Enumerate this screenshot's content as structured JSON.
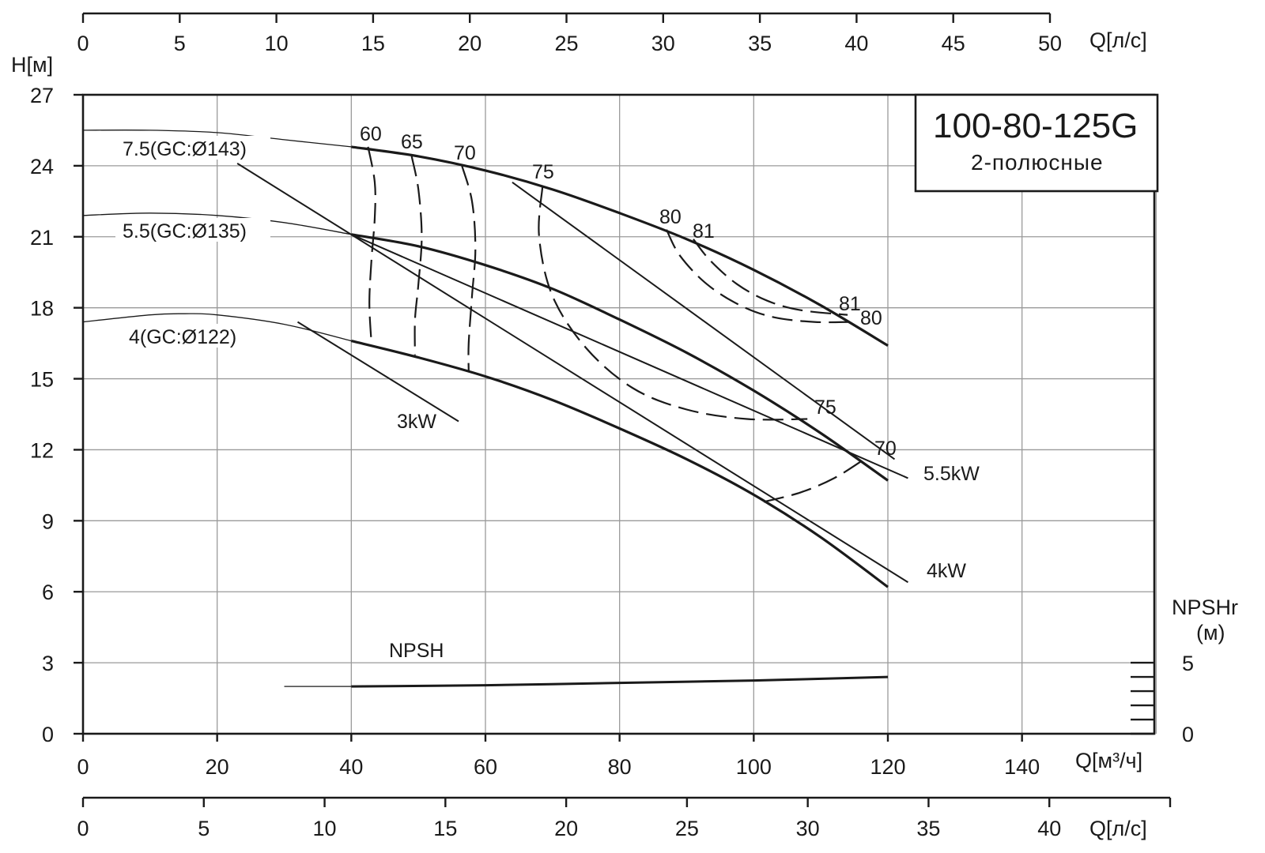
{
  "chart_data": {
    "type": "line",
    "title": "100-80-125G",
    "subtitle": "2-полюсные",
    "xlabel": "Q[м³/ч]",
    "ylabel": "H[м]",
    "xlim": [
      0,
      160
    ],
    "ylim": [
      0,
      27
    ],
    "x_ticks": [
      "0",
      "20",
      "40",
      "60",
      "80",
      "100",
      "120",
      "140"
    ],
    "y_ticks": [
      "0",
      "3",
      "6",
      "9",
      "12",
      "15",
      "18",
      "21",
      "24",
      "27"
    ],
    "top_axis": {
      "label": "Q[л/с]",
      "ticks": [
        "0",
        "5",
        "10",
        "15",
        "20",
        "25",
        "30",
        "35",
        "40",
        "45",
        "50"
      ],
      "max": 50
    },
    "bottom_axis": {
      "label": "Q[л/с]",
      "ticks": [
        "0",
        "5",
        "10",
        "15",
        "20",
        "25",
        "30",
        "35",
        "40"
      ],
      "max": 45
    },
    "npsh_axis": {
      "label_line1": "NPSHr",
      "label_line2": "(м)",
      "ticks": [
        "0",
        "5"
      ]
    },
    "grid": true,
    "series": [
      {
        "name": "7.5(GC:Ø143)",
        "operating_start": 40,
        "points": [
          [
            0,
            25.5
          ],
          [
            10,
            25.5
          ],
          [
            20,
            25.4
          ],
          [
            30,
            25.1
          ],
          [
            40,
            24.8
          ],
          [
            50,
            24.4
          ],
          [
            60,
            23.8
          ],
          [
            70,
            23.0
          ],
          [
            80,
            22.0
          ],
          [
            90,
            20.9
          ],
          [
            100,
            19.6
          ],
          [
            110,
            18.1
          ],
          [
            120,
            16.4
          ]
        ]
      },
      {
        "name": "5.5(GC:Ø135)",
        "operating_start": 40,
        "points": [
          [
            0,
            21.9
          ],
          [
            10,
            22.0
          ],
          [
            20,
            21.9
          ],
          [
            30,
            21.6
          ],
          [
            40,
            21.1
          ],
          [
            50,
            20.6
          ],
          [
            60,
            19.8
          ],
          [
            70,
            18.8
          ],
          [
            80,
            17.5
          ],
          [
            90,
            16.1
          ],
          [
            100,
            14.5
          ],
          [
            110,
            12.7
          ],
          [
            120,
            10.7
          ]
        ]
      },
      {
        "name": "4(GC:Ø122)",
        "operating_start": 40,
        "points": [
          [
            0,
            17.4
          ],
          [
            10,
            17.7
          ],
          [
            15,
            17.75
          ],
          [
            20,
            17.7
          ],
          [
            30,
            17.3
          ],
          [
            40,
            16.6
          ],
          [
            50,
            15.9
          ],
          [
            60,
            15.1
          ],
          [
            70,
            14.1
          ],
          [
            80,
            12.9
          ],
          [
            90,
            11.6
          ],
          [
            100,
            10.1
          ],
          [
            110,
            8.3
          ],
          [
            120,
            6.2
          ]
        ]
      },
      {
        "name": "NPSH",
        "operating_start": 40,
        "points": [
          [
            30,
            2.0
          ],
          [
            40,
            2.0
          ],
          [
            60,
            2.05
          ],
          [
            80,
            2.15
          ],
          [
            100,
            2.25
          ],
          [
            120,
            2.4
          ]
        ]
      }
    ],
    "power_lines": [
      {
        "name": "3kW",
        "points": [
          [
            32,
            17.4
          ],
          [
            56,
            13.2
          ]
        ]
      },
      {
        "name": "4kW",
        "points": [
          [
            23,
            24.1
          ],
          [
            123,
            6.4
          ]
        ]
      },
      {
        "name": "5.5kW",
        "points": [
          [
            40,
            21.1
          ],
          [
            123,
            10.8
          ]
        ]
      },
      {
        "name": "",
        "points": [
          [
            64,
            23.3
          ],
          [
            121,
            11.6
          ]
        ]
      }
    ],
    "efficiency": [
      {
        "label": "60",
        "points": [
          [
            42.5,
            24.8
          ],
          [
            43.5,
            23.3
          ],
          [
            43.5,
            21.8
          ],
          [
            43.0,
            20.0
          ],
          [
            42.7,
            18.2
          ],
          [
            43.0,
            16.5
          ]
        ]
      },
      {
        "label": "65",
        "points": [
          [
            49.0,
            24.4
          ],
          [
            50.0,
            23.0
          ],
          [
            50.5,
            21.0
          ],
          [
            50.0,
            19.0
          ],
          [
            49.5,
            17.5
          ],
          [
            49.5,
            16.0
          ]
        ]
      },
      {
        "label": "70",
        "points": [
          [
            56.5,
            24.0
          ],
          [
            58.0,
            22.5
          ],
          [
            58.5,
            20.5
          ],
          [
            58.0,
            18.5
          ],
          [
            57.5,
            16.5
          ],
          [
            57.5,
            15.3
          ]
        ]
      },
      {
        "label": "75",
        "points": [
          [
            68.5,
            23.1
          ],
          [
            68.0,
            21.0
          ],
          [
            70.0,
            18.5
          ],
          [
            75.0,
            16.3
          ],
          [
            82.0,
            14.6
          ],
          [
            90.0,
            13.7
          ],
          [
            99.0,
            13.3
          ],
          [
            108.0,
            13.3
          ]
        ]
      },
      {
        "label": "80",
        "points": [
          [
            87.0,
            21.3
          ],
          [
            89.0,
            20.2
          ],
          [
            93.0,
            19.0
          ],
          [
            98.0,
            18.1
          ],
          [
            103.0,
            17.6
          ],
          [
            109.0,
            17.4
          ],
          [
            114.5,
            17.4
          ]
        ]
      },
      {
        "label": "81",
        "points": [
          [
            91.0,
            20.9
          ],
          [
            93.5,
            20.0
          ],
          [
            97.5,
            19.0
          ],
          [
            102.0,
            18.3
          ],
          [
            107.0,
            17.9
          ],
          [
            114.0,
            17.7
          ]
        ]
      },
      {
        "label": "70",
        "points": [
          [
            101.5,
            9.8
          ],
          [
            107.0,
            10.2
          ],
          [
            112.0,
            10.8
          ],
          [
            116.5,
            11.6
          ]
        ]
      }
    ],
    "labels": {
      "eff_60": "60",
      "eff_65": "65",
      "eff_70": "70",
      "eff_75": "75",
      "eff_80": "80",
      "eff_81": "81",
      "eff_81_end": "81",
      "eff_80_end": "80",
      "eff_75_end": "75",
      "eff_70_end": "70",
      "curve_143": "7.5(GC:Ø143)",
      "curve_135": "5.5(GC:Ø135)",
      "curve_122": "4(GC:Ø122)",
      "p3": "3kW",
      "p4": "4kW",
      "p55": "5.5kW",
      "npsh": "NPSH"
    }
  }
}
